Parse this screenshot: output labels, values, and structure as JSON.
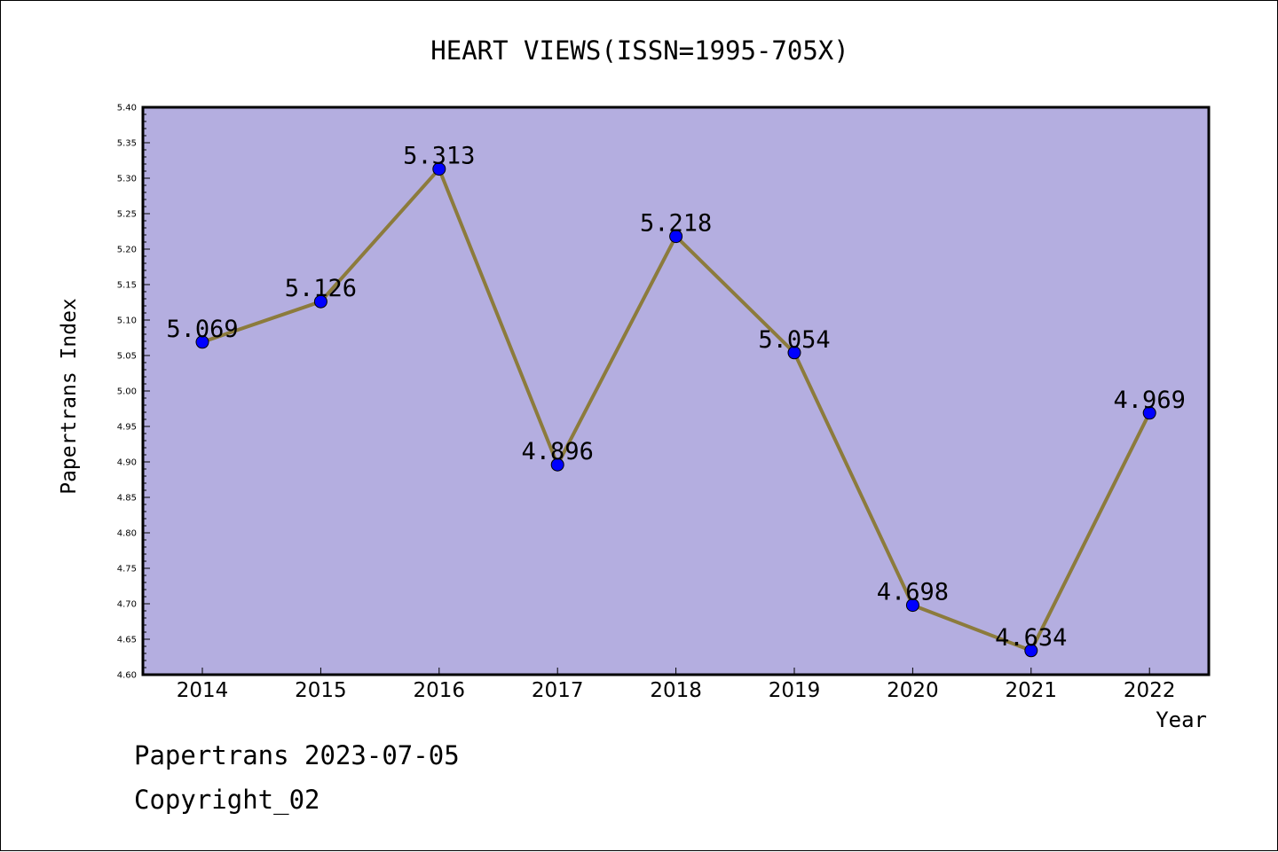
{
  "chart_data": {
    "type": "line",
    "title": "HEART VIEWS(ISSN=1995-705X)",
    "xlabel": "Year",
    "ylabel": "Papertrans Index",
    "categories": [
      "2014",
      "2015",
      "2016",
      "2017",
      "2018",
      "2019",
      "2020",
      "2021",
      "2022"
    ],
    "series": [
      {
        "values": [
          5.069,
          5.126,
          5.313,
          4.896,
          5.218,
          5.054,
          4.698,
          4.634,
          4.969
        ],
        "data_labels": [
          "5.069",
          "5.126",
          "5.313",
          "4.896",
          "5.218",
          "5.054",
          "4.698",
          "4.634",
          "4.969"
        ]
      }
    ],
    "ylim": [
      4.6,
      5.4
    ],
    "yticks": [
      "4.60",
      "4.65",
      "4.70",
      "4.75",
      "4.80",
      "4.85",
      "4.90",
      "4.95",
      "5.00",
      "5.05",
      "5.10",
      "5.15",
      "5.20",
      "5.25",
      "5.30",
      "5.35",
      "5.40"
    ],
    "grid": false,
    "legend": "none",
    "colors": {
      "plot_background": "#b4aee0",
      "line": "#8c7b3c",
      "marker": "#0000ff",
      "axis": "#000000"
    }
  },
  "footer": {
    "line1": "Papertrans 2023-07-05",
    "line2": "Copyright_02"
  }
}
